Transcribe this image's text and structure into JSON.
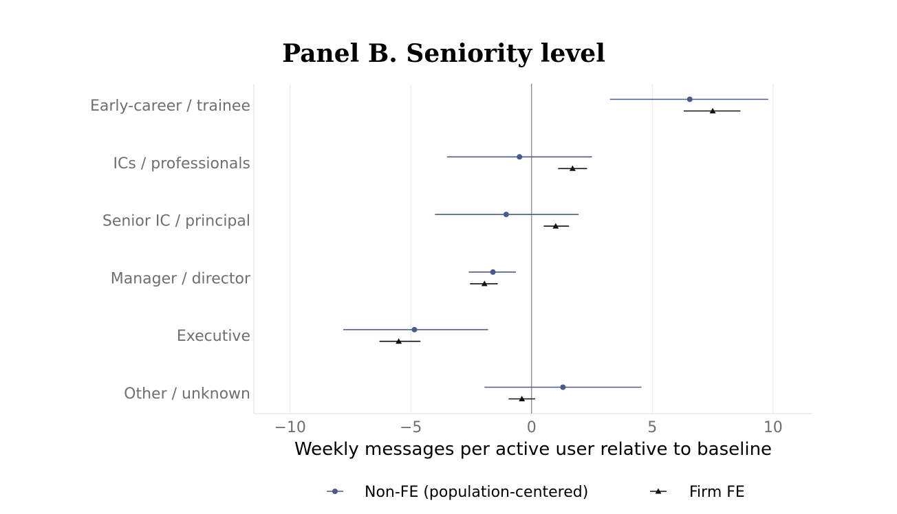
{
  "chart_data": {
    "type": "scatter",
    "title": "Panel B. Seniority level",
    "xlabel": "Weekly messages per active user relative to baseline",
    "ylabel": "",
    "xlim": [
      -11.5,
      11.6
    ],
    "xticks": [
      -10,
      -5,
      0,
      5,
      10
    ],
    "xtick_labels": [
      "−10",
      "−5",
      "0",
      "5",
      "10"
    ],
    "categories": [
      "Early-career / trainee",
      "ICs / professionals",
      "Senior IC / principal",
      "Manager / director",
      "Executive",
      "Other / unknown"
    ],
    "reference_line_x": 0,
    "grid": "vertical",
    "legend_position": "bottom",
    "series": [
      {
        "name": "Non-FE (population-centered)",
        "color": "#4a5a8a",
        "marker": "circle",
        "estimate": [
          6.55,
          -0.5,
          -1.05,
          -1.6,
          -4.85,
          1.3
        ],
        "ci_low": [
          3.25,
          -3.5,
          -4.0,
          -2.6,
          -7.8,
          -1.95
        ],
        "ci_high": [
          9.8,
          2.5,
          1.95,
          -0.65,
          -1.8,
          4.55
        ]
      },
      {
        "name": "Firm FE",
        "color": "#111111",
        "marker": "triangle",
        "estimate": [
          7.5,
          1.7,
          1.0,
          -1.95,
          -5.5,
          -0.4
        ],
        "ci_low": [
          6.3,
          1.1,
          0.5,
          -2.55,
          -6.3,
          -0.95
        ],
        "ci_high": [
          8.65,
          2.3,
          1.55,
          -1.4,
          -4.6,
          0.15
        ]
      }
    ]
  }
}
